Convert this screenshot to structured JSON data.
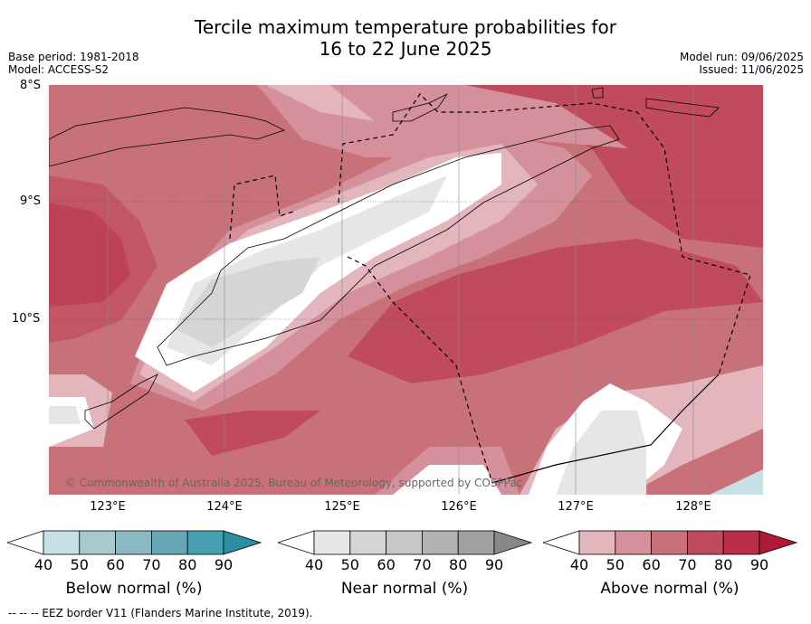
{
  "title_line1": "Tercile maximum temperature probabilities for",
  "title_line2": "16 to 22 June 2025",
  "base_period": "Base period: 1981-2018",
  "model": "Model: ACCESS-S2",
  "model_run": "Model run: 09/06/2025",
  "issued": "Issued: 11/06/2025",
  "lat_labels": [
    "8°S",
    "9°S",
    "10°S"
  ],
  "lon_labels": [
    "123°E",
    "124°E",
    "125°E",
    "126°E",
    "127°E",
    "128°E"
  ],
  "copyright": "© Commonwealth of Australia 2025, Bureau of Meteorology, supported by COSPPac",
  "colorbars": [
    {
      "name": "below",
      "label": "Below normal (%)",
      "ticks": [
        "40",
        "50",
        "60",
        "70",
        "80",
        "90"
      ],
      "colors": [
        "#c7e0e6",
        "#a8c9ce",
        "#8ab9c2",
        "#67a7b5",
        "#46a0b1",
        "#2a8fa3"
      ]
    },
    {
      "name": "near",
      "label": "Near normal (%)",
      "ticks": [
        "40",
        "50",
        "60",
        "70",
        "80",
        "90"
      ],
      "colors": [
        "#e6e6e6",
        "#d5d5d5",
        "#c6c6c6",
        "#b2b2b2",
        "#a0a0a0",
        "#888888"
      ]
    },
    {
      "name": "above",
      "label": "Above normal (%)",
      "ticks": [
        "40",
        "50",
        "60",
        "70",
        "80",
        "90"
      ],
      "colors": [
        "#e3b6bd",
        "#d5919b",
        "#c97179",
        "#c04b5c",
        "#b82d47",
        "#b01a38"
      ]
    }
  ],
  "footnote": "--  --  -- EEZ border V11 (Flanders Marine Institute, 2019)."
}
